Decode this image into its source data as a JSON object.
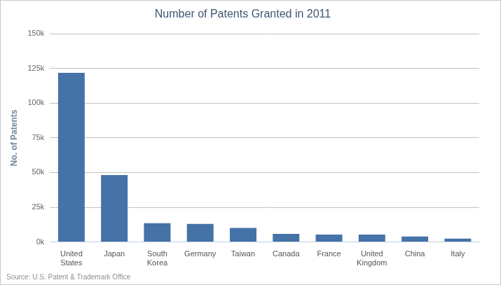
{
  "chart_data": {
    "type": "bar",
    "title": "Number of Patents Granted in 2011",
    "source": "Source: U.S. Patent & Trademark Office",
    "y_label": "No. of Patents",
    "categories": [
      "United States",
      "Japan",
      "South Korea",
      "Germany",
      "Taiwan",
      "Canada",
      "France",
      "United Kingdom",
      "China",
      "Italy"
    ],
    "values": [
      121800,
      48200,
      13600,
      13100,
      10200,
      5800,
      5400,
      5400,
      3900,
      2400
    ],
    "color": "#4572a7",
    "ylim": [
      0,
      150000
    ],
    "yticks": [
      {
        "value": 0,
        "label": "0k"
      },
      {
        "value": 25000,
        "label": "25k"
      },
      {
        "value": 50000,
        "label": "50k"
      },
      {
        "value": 75000,
        "label": "75k"
      },
      {
        "value": 100000,
        "label": "100k"
      },
      {
        "value": 125000,
        "label": "125k"
      },
      {
        "value": 150000,
        "label": "150k"
      }
    ],
    "grid": true
  }
}
